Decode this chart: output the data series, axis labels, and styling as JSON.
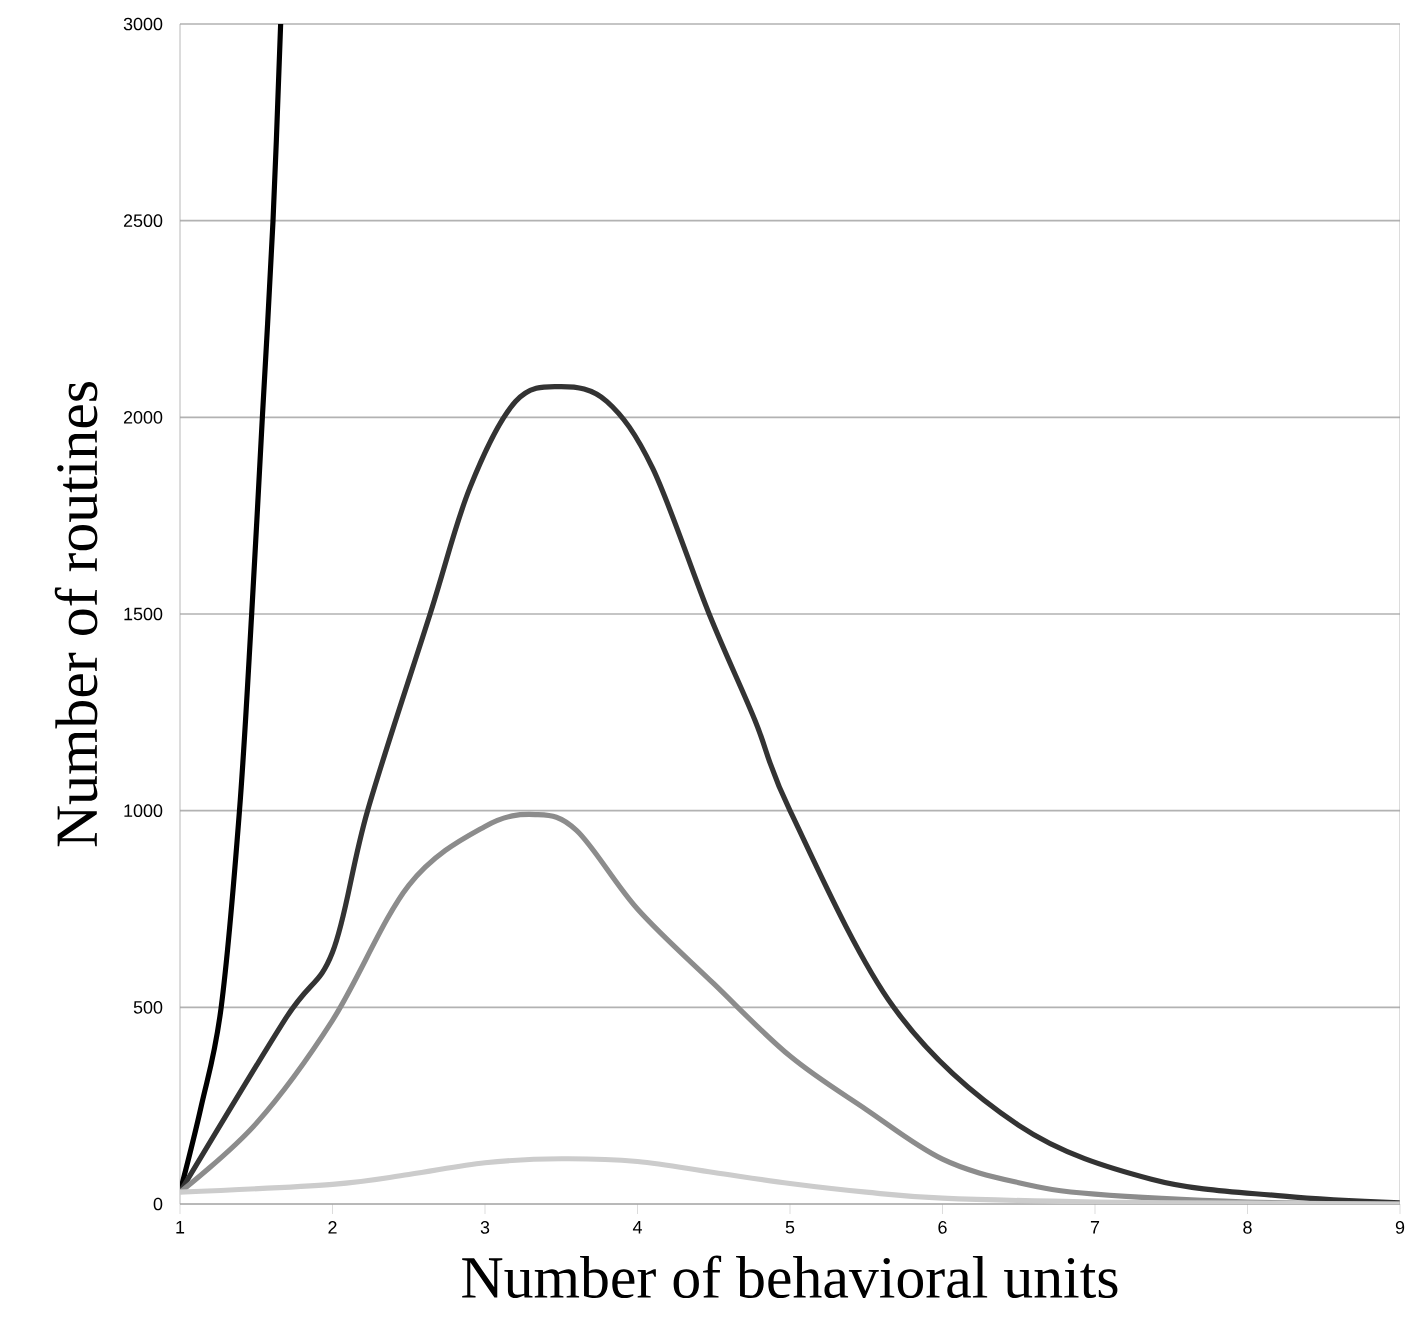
{
  "chart_data": {
    "type": "line",
    "xlabel": "Number of behavioral units",
    "ylabel": "Number of routines",
    "xlim": [
      1,
      9
    ],
    "xticks": [
      1,
      2,
      3,
      4,
      5,
      6,
      7,
      8,
      9
    ],
    "ylim": [
      0,
      3000
    ],
    "yticks": [
      0,
      500,
      1000,
      1500,
      2000,
      2500,
      3000
    ],
    "grid": "y",
    "line_style": "solid",
    "marker": "none",
    "series": [
      {
        "color": "#000000",
        "x": [
          1,
          1.14,
          1.27,
          1.39,
          1.47,
          1.54,
          1.61,
          1.66
        ],
        "values": [
          30,
          250,
          500,
          1000,
          1500,
          2000,
          2500,
          3000
        ]
      },
      {
        "color": "#333333",
        "x": [
          1,
          1.69,
          2,
          2.23,
          2.64,
          2.9,
          3.2,
          3.5,
          3.8,
          4.1,
          4.47,
          4.77,
          5,
          5.68,
          6.5,
          7.37,
          8.24,
          9
        ],
        "values": [
          30,
          470,
          640,
          1000,
          1500,
          1820,
          2040,
          2078,
          2040,
          1870,
          1500,
          1230,
          1000,
          500,
          200,
          63,
          20,
          3
        ]
      },
      {
        "color": "#8c8c8c",
        "x": [
          1,
          1.5,
          2,
          2.5,
          3,
          3.33,
          3.6,
          4,
          4.5,
          5,
          5.5,
          6,
          6.5,
          7,
          8,
          9
        ],
        "values": [
          30,
          205,
          467,
          810,
          960,
          990,
          950,
          750,
          560,
          376,
          240,
          114,
          54,
          25,
          5,
          0
        ]
      },
      {
        "color": "#cccccc",
        "x": [
          1,
          2,
          2.5,
          3,
          3.5,
          4,
          4.5,
          5,
          5.5,
          6,
          7,
          8,
          9
        ],
        "values": [
          30,
          50,
          75,
          105,
          115,
          108,
          80,
          52,
          30,
          15,
          5,
          2,
          0
        ]
      }
    ]
  }
}
